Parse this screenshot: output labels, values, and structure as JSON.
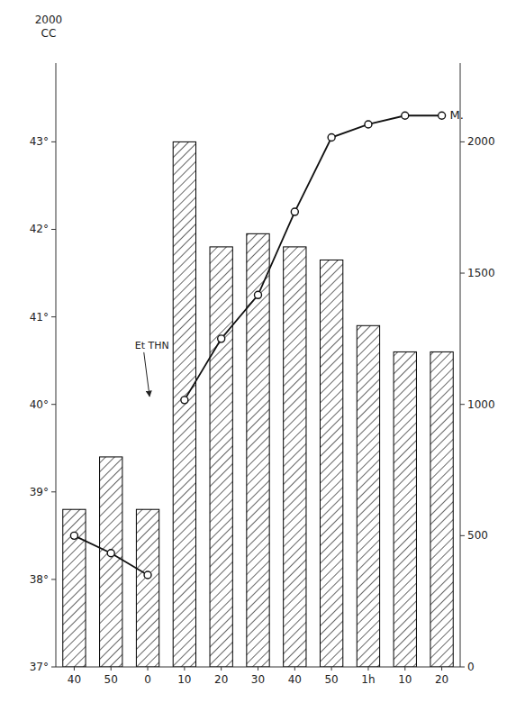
{
  "chart_data": {
    "type": "bar",
    "categories": [
      "40",
      "50",
      "0",
      "10",
      "20",
      "30",
      "40",
      "50",
      "1h",
      "10",
      "20"
    ],
    "series": [
      {
        "type": "bar",
        "axis": "y2",
        "color": "#000000",
        "values": [
          600,
          800,
          600,
          2000,
          1600,
          1650,
          1600,
          1550,
          1300,
          1200,
          1200
        ]
      },
      {
        "type": "line",
        "color": "#111111",
        "marker": "circle",
        "line_style": "solid",
        "values": [
          38.5,
          38.3,
          38.05,
          null,
          null,
          null,
          null,
          null,
          null,
          null,
          null
        ]
      },
      {
        "type": "line",
        "color": "#111111",
        "marker": "circle",
        "line_style": "solid",
        "values": [
          null,
          null,
          null,
          40.05,
          40.75,
          41.25,
          42.2,
          43.05,
          43.2,
          43.3,
          43.3
        ]
      }
    ],
    "ylim": [
      37,
      43.9
    ],
    "yticks": [
      {
        "value": 37,
        "label": "37°"
      },
      {
        "value": 38,
        "label": "38°"
      },
      {
        "value": 39,
        "label": "39°"
      },
      {
        "value": 40,
        "label": "40°"
      },
      {
        "value": 41,
        "label": "41°"
      },
      {
        "value": 42,
        "label": "42°"
      },
      {
        "value": 43,
        "label": "43°"
      }
    ],
    "y2lim": [
      0,
      2300
    ],
    "y2ticks": [
      0,
      500,
      1000,
      1500,
      2000
    ],
    "grid": false,
    "annotations": [
      {
        "text": "Et THN",
        "x": 2.05,
        "y": 40.07
      },
      {
        "text": "M.",
        "x": 10,
        "y": 43.3
      },
      {
        "text": "2000\nCC"
      }
    ]
  }
}
